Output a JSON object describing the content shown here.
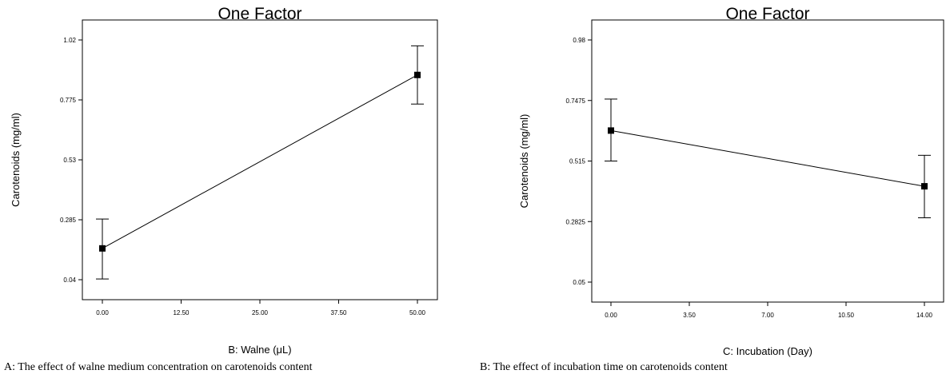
{
  "charts": [
    {
      "caption": "A: The effect of walne medium concentration on carotenoids content",
      "chart_data": {
        "type": "line",
        "title": "One Factor",
        "xlabel": "B: Walne (μL)",
        "ylabel": "Carotenoids (mg/ml)",
        "x_ticks": [
          "0.00",
          "12.50",
          "25.00",
          "37.50",
          "50.00"
        ],
        "y_ticks": [
          "0.04",
          "0.285",
          "0.53",
          "0.775",
          "1.02"
        ],
        "xlim": [
          0,
          50
        ],
        "ylim": [
          0.04,
          1.02
        ],
        "series": [
          {
            "points": [
              {
                "x": 0,
                "y": 0.168,
                "err_low": 0.043,
                "err_high": 0.288
              },
              {
                "x": 50,
                "y": 0.877,
                "err_low": 0.758,
                "err_high": 0.996
              }
            ]
          }
        ],
        "grid": false
      }
    },
    {
      "caption": "B: The effect of incubation time on carotenoids content",
      "chart_data": {
        "type": "line",
        "title": "One Factor",
        "xlabel": "C: Incubation (Day)",
        "ylabel": "Carotenoids (mg/ml)",
        "x_ticks": [
          "0.00",
          "3.50",
          "7.00",
          "10.50",
          "14.00"
        ],
        "y_ticks": [
          "0.05",
          "0.2825",
          "0.515",
          "0.7475",
          "0.98"
        ],
        "xlim": [
          0,
          14
        ],
        "ylim": [
          0.05,
          0.98
        ],
        "series": [
          {
            "points": [
              {
                "x": 0,
                "y": 0.632,
                "err_low": 0.515,
                "err_high": 0.753
              },
              {
                "x": 14,
                "y": 0.418,
                "err_low": 0.297,
                "err_high": 0.537
              }
            ]
          }
        ],
        "grid": false
      }
    }
  ]
}
